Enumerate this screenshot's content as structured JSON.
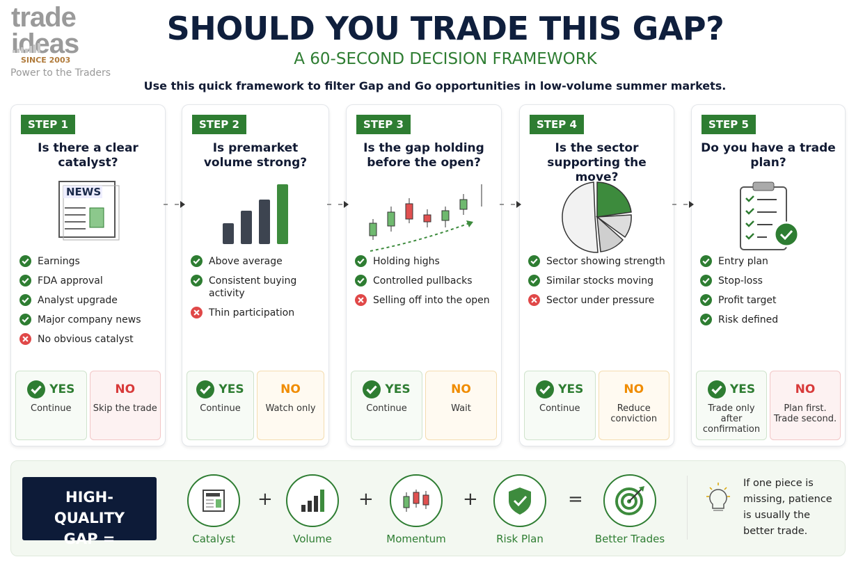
{
  "logo": {
    "line1": "trade",
    "line2": "ideas",
    "since": "SINCE 2003",
    "tagline": "Power to the Traders"
  },
  "header": {
    "title": "SHOULD YOU TRADE THIS GAP?",
    "subtitle": "A 60-SECOND DECISION FRAMEWORK",
    "intro": "Use this quick framework to filter Gap and Go opportunities in low-volume summer markets."
  },
  "steps": [
    {
      "label": "STEP 1",
      "question": "Is there a clear catalyst?",
      "icon_text": "NEWS",
      "items": [
        {
          "text": "Earnings",
          "ok": true
        },
        {
          "text": "FDA approval",
          "ok": true
        },
        {
          "text": "Analyst upgrade",
          "ok": true
        },
        {
          "text": "Major company news",
          "ok": true
        },
        {
          "text": "No obvious catalyst",
          "ok": false
        }
      ],
      "yes": {
        "label": "YES",
        "note": "Continue"
      },
      "no": {
        "label": "NO",
        "note": "Skip the trade"
      }
    },
    {
      "label": "STEP 2",
      "question": "Is premarket volume strong?",
      "items": [
        {
          "text": "Above average",
          "ok": true
        },
        {
          "text": "Consistent buying activity",
          "ok": true
        },
        {
          "text": "Thin participation",
          "ok": false
        }
      ],
      "yes": {
        "label": "YES",
        "note": "Continue"
      },
      "no": {
        "label": "NO",
        "note": "Watch only"
      }
    },
    {
      "label": "STEP 3",
      "question": "Is the gap holding before the open?",
      "items": [
        {
          "text": "Holding highs",
          "ok": true
        },
        {
          "text": "Controlled pullbacks",
          "ok": true
        },
        {
          "text": "Selling off into the open",
          "ok": false
        }
      ],
      "yes": {
        "label": "YES",
        "note": "Continue"
      },
      "no": {
        "label": "NO",
        "note": "Wait"
      }
    },
    {
      "label": "STEP 4",
      "question": "Is the sector supporting the move?",
      "items": [
        {
          "text": "Sector showing strength",
          "ok": true
        },
        {
          "text": "Similar stocks moving",
          "ok": true
        },
        {
          "text": "Sector under pressure",
          "ok": false
        }
      ],
      "yes": {
        "label": "YES",
        "note": "Continue"
      },
      "no": {
        "label": "NO",
        "note": "Reduce conviction"
      }
    },
    {
      "label": "STEP 5",
      "question": "Do you have a trade plan?",
      "items": [
        {
          "text": "Entry plan",
          "ok": true
        },
        {
          "text": "Stop-loss",
          "ok": true
        },
        {
          "text": "Profit target",
          "ok": true
        },
        {
          "text": "Risk defined",
          "ok": true
        }
      ],
      "yes": {
        "label": "YES",
        "note": "Trade only after confirmation"
      },
      "no": {
        "label": "NO",
        "note": "Plan first. Trade second."
      }
    }
  ],
  "footer": {
    "badge": "HIGH-QUALITY GAP =",
    "formula": [
      "Catalyst",
      "Volume",
      "Momentum",
      "Risk Plan",
      "Better Trades"
    ],
    "operators": [
      "+",
      "+",
      "+",
      "="
    ],
    "tip": "If one piece is missing, patience is usually the better trade."
  }
}
